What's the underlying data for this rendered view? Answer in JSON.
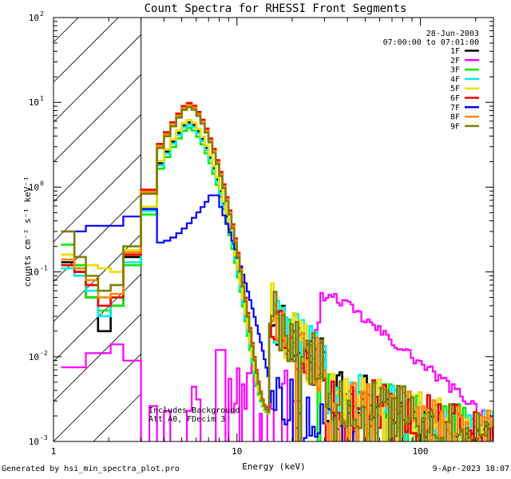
{
  "chart_data": {
    "type": "line",
    "title": "Count Spectra for RHESSI Front Segments",
    "xlabel": "Energy (keV)",
    "ylabel": "counts cm⁻² s⁻¹ keV⁻¹",
    "xscale": "log",
    "yscale": "log",
    "xlim": [
      1,
      250
    ],
    "ylim": [
      0.001,
      100
    ],
    "x_ticks": [
      {
        "value": 1,
        "label": "1"
      },
      {
        "value": 10,
        "label": "10"
      },
      {
        "value": 100,
        "label": "100"
      }
    ],
    "y_ticks": [
      {
        "value": 0.001,
        "base": "10",
        "exp": "-3"
      },
      {
        "value": 0.01,
        "base": "10",
        "exp": "-2"
      },
      {
        "value": 0.1,
        "base": "10",
        "exp": "-1"
      },
      {
        "value": 1,
        "base": "10",
        "exp": "0"
      },
      {
        "value": 10,
        "base": "10",
        "exp": "1"
      },
      {
        "value": 100,
        "base": "10",
        "exp": "2"
      }
    ],
    "date": "28-Jun-2003",
    "time_range": "07:00:00 to 07:01:00",
    "hatched_region_max_energy": 3,
    "annotation_lines": [
      "Includes Background",
      "Att A0, FDecim 3"
    ],
    "series": [
      {
        "name": "1F",
        "color": "#000000",
        "amp": 5.8,
        "low": [
          0.13,
          0.1,
          0.05,
          0.02,
          0.04,
          0.15
        ],
        "tailNoise": 1.0,
        "seed": 11
      },
      {
        "name": "2F",
        "color": "#ff00ff",
        "special": "2F"
      },
      {
        "name": "3F",
        "color": "#00ee00",
        "amp": 5.0,
        "low": [
          0.21,
          0.12,
          0.05,
          0.035,
          0.04,
          0.12
        ],
        "tailNoise": 1.0,
        "seed": 23
      },
      {
        "name": "4F",
        "color": "#00eeee",
        "amp": 5.5,
        "low": [
          0.11,
          0.09,
          0.06,
          0.03,
          0.05,
          0.13
        ],
        "tailNoise": 1.0,
        "seed": 31
      },
      {
        "name": "5F",
        "color": "#eedd00",
        "amp": 6.2,
        "low": [
          0.16,
          0.11,
          0.12,
          0.11,
          0.1,
          0.18
        ],
        "tailNoise": 1.0,
        "seed": 41
      },
      {
        "name": "6F",
        "color": "#ee0000",
        "amp": 9.8,
        "low": [
          0.12,
          0.1,
          0.07,
          0.04,
          0.05,
          0.16
        ],
        "tailNoise": 1.0,
        "seed": 53
      },
      {
        "name": "7F",
        "color": "#0000ff",
        "special": "7F"
      },
      {
        "name": "8F",
        "color": "#ff8800",
        "amp": 9.3,
        "low": [
          0.14,
          0.11,
          0.08,
          0.05,
          0.055,
          0.17
        ],
        "tailNoise": 1.0,
        "seed": 67
      },
      {
        "name": "9F",
        "color": "#7f7f00",
        "amp": 8.8,
        "low": [
          0.3,
          0.15,
          0.09,
          0.06,
          0.07,
          0.2
        ],
        "tailNoise": 1.0,
        "seed": 79
      }
    ]
  },
  "footer": {
    "left": "Generated by hsi_min_spectra_plot.pro",
    "right": "9-Apr-2023 18:07"
  }
}
